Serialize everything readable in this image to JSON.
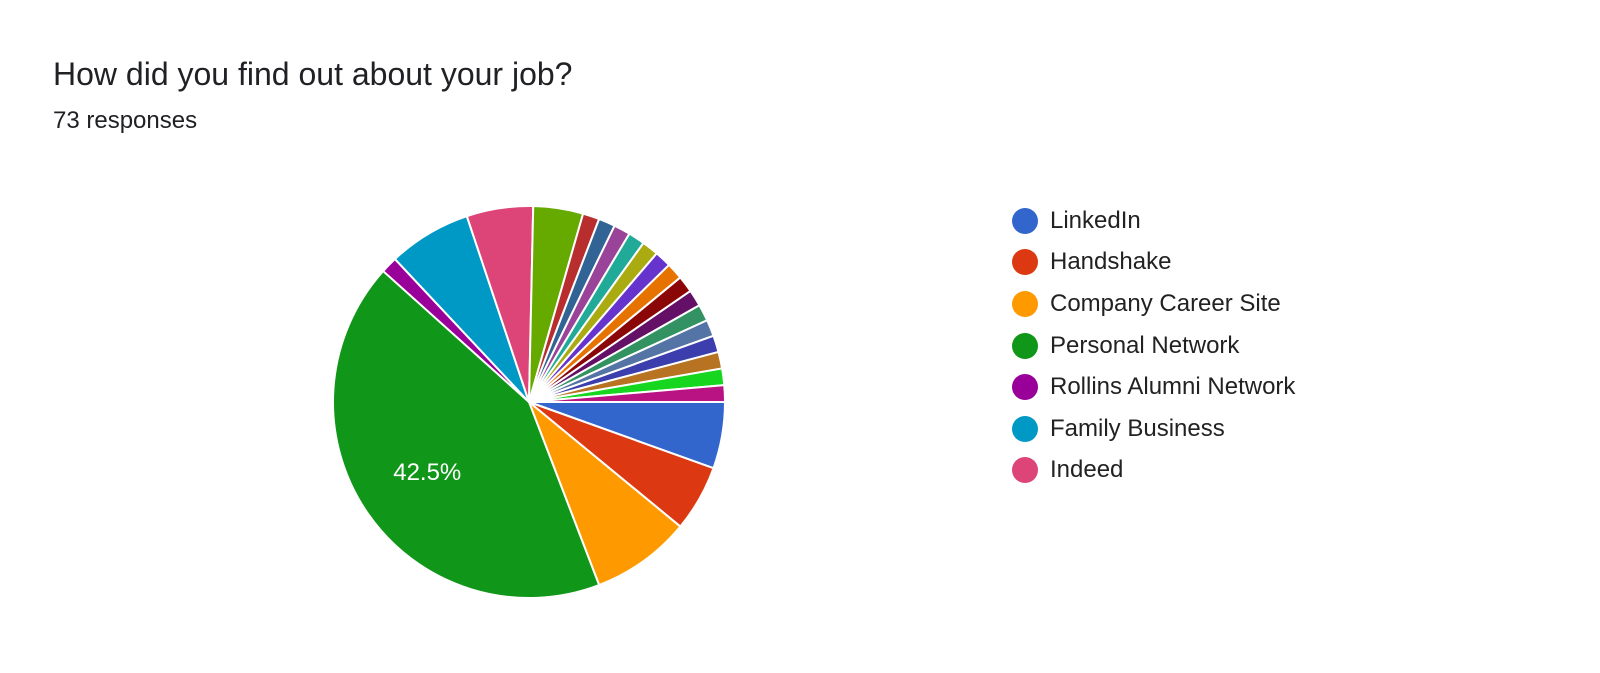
{
  "header": {
    "title": "How did you find out about your job?",
    "responses": "73 responses"
  },
  "chart_data": {
    "type": "pie",
    "total_responses": 73,
    "slices": [
      {
        "name": "LinkedIn",
        "value": 4,
        "color": "#3366cc"
      },
      {
        "name": "Handshake",
        "value": 4,
        "color": "#dc3912"
      },
      {
        "name": "Company Career Site",
        "value": 6,
        "color": "#ff9900"
      },
      {
        "name": "Personal Network",
        "value": 31,
        "color": "#109618",
        "label": "42.5%"
      },
      {
        "name": "Rollins Alumni Network",
        "value": 1,
        "color": "#990099"
      },
      {
        "name": "Family Business",
        "value": 5,
        "color": "#0099c6"
      },
      {
        "name": "Indeed",
        "value": 4,
        "color": "#dd4477"
      },
      {
        "name": "",
        "value": 3,
        "color": "#66aa00"
      },
      {
        "name": "",
        "value": 1,
        "color": "#b82e2e"
      },
      {
        "name": "",
        "value": 1,
        "color": "#316395"
      },
      {
        "name": "",
        "value": 1,
        "color": "#994499"
      },
      {
        "name": "",
        "value": 1,
        "color": "#22aa99"
      },
      {
        "name": "",
        "value": 1,
        "color": "#aaaa11"
      },
      {
        "name": "",
        "value": 1,
        "color": "#6633cc"
      },
      {
        "name": "",
        "value": 1,
        "color": "#e67300"
      },
      {
        "name": "",
        "value": 1,
        "color": "#8b0707"
      },
      {
        "name": "",
        "value": 1,
        "color": "#651067"
      },
      {
        "name": "",
        "value": 1,
        "color": "#329262"
      },
      {
        "name": "",
        "value": 1,
        "color": "#5574a6"
      },
      {
        "name": "",
        "value": 1,
        "color": "#3b3eac"
      },
      {
        "name": "",
        "value": 1,
        "color": "#b77322"
      },
      {
        "name": "",
        "value": 1,
        "color": "#16d620"
      },
      {
        "name": "",
        "value": 1,
        "color": "#b91383"
      }
    ],
    "legend_position": "right",
    "start": "3 o'clock, clockwise"
  }
}
